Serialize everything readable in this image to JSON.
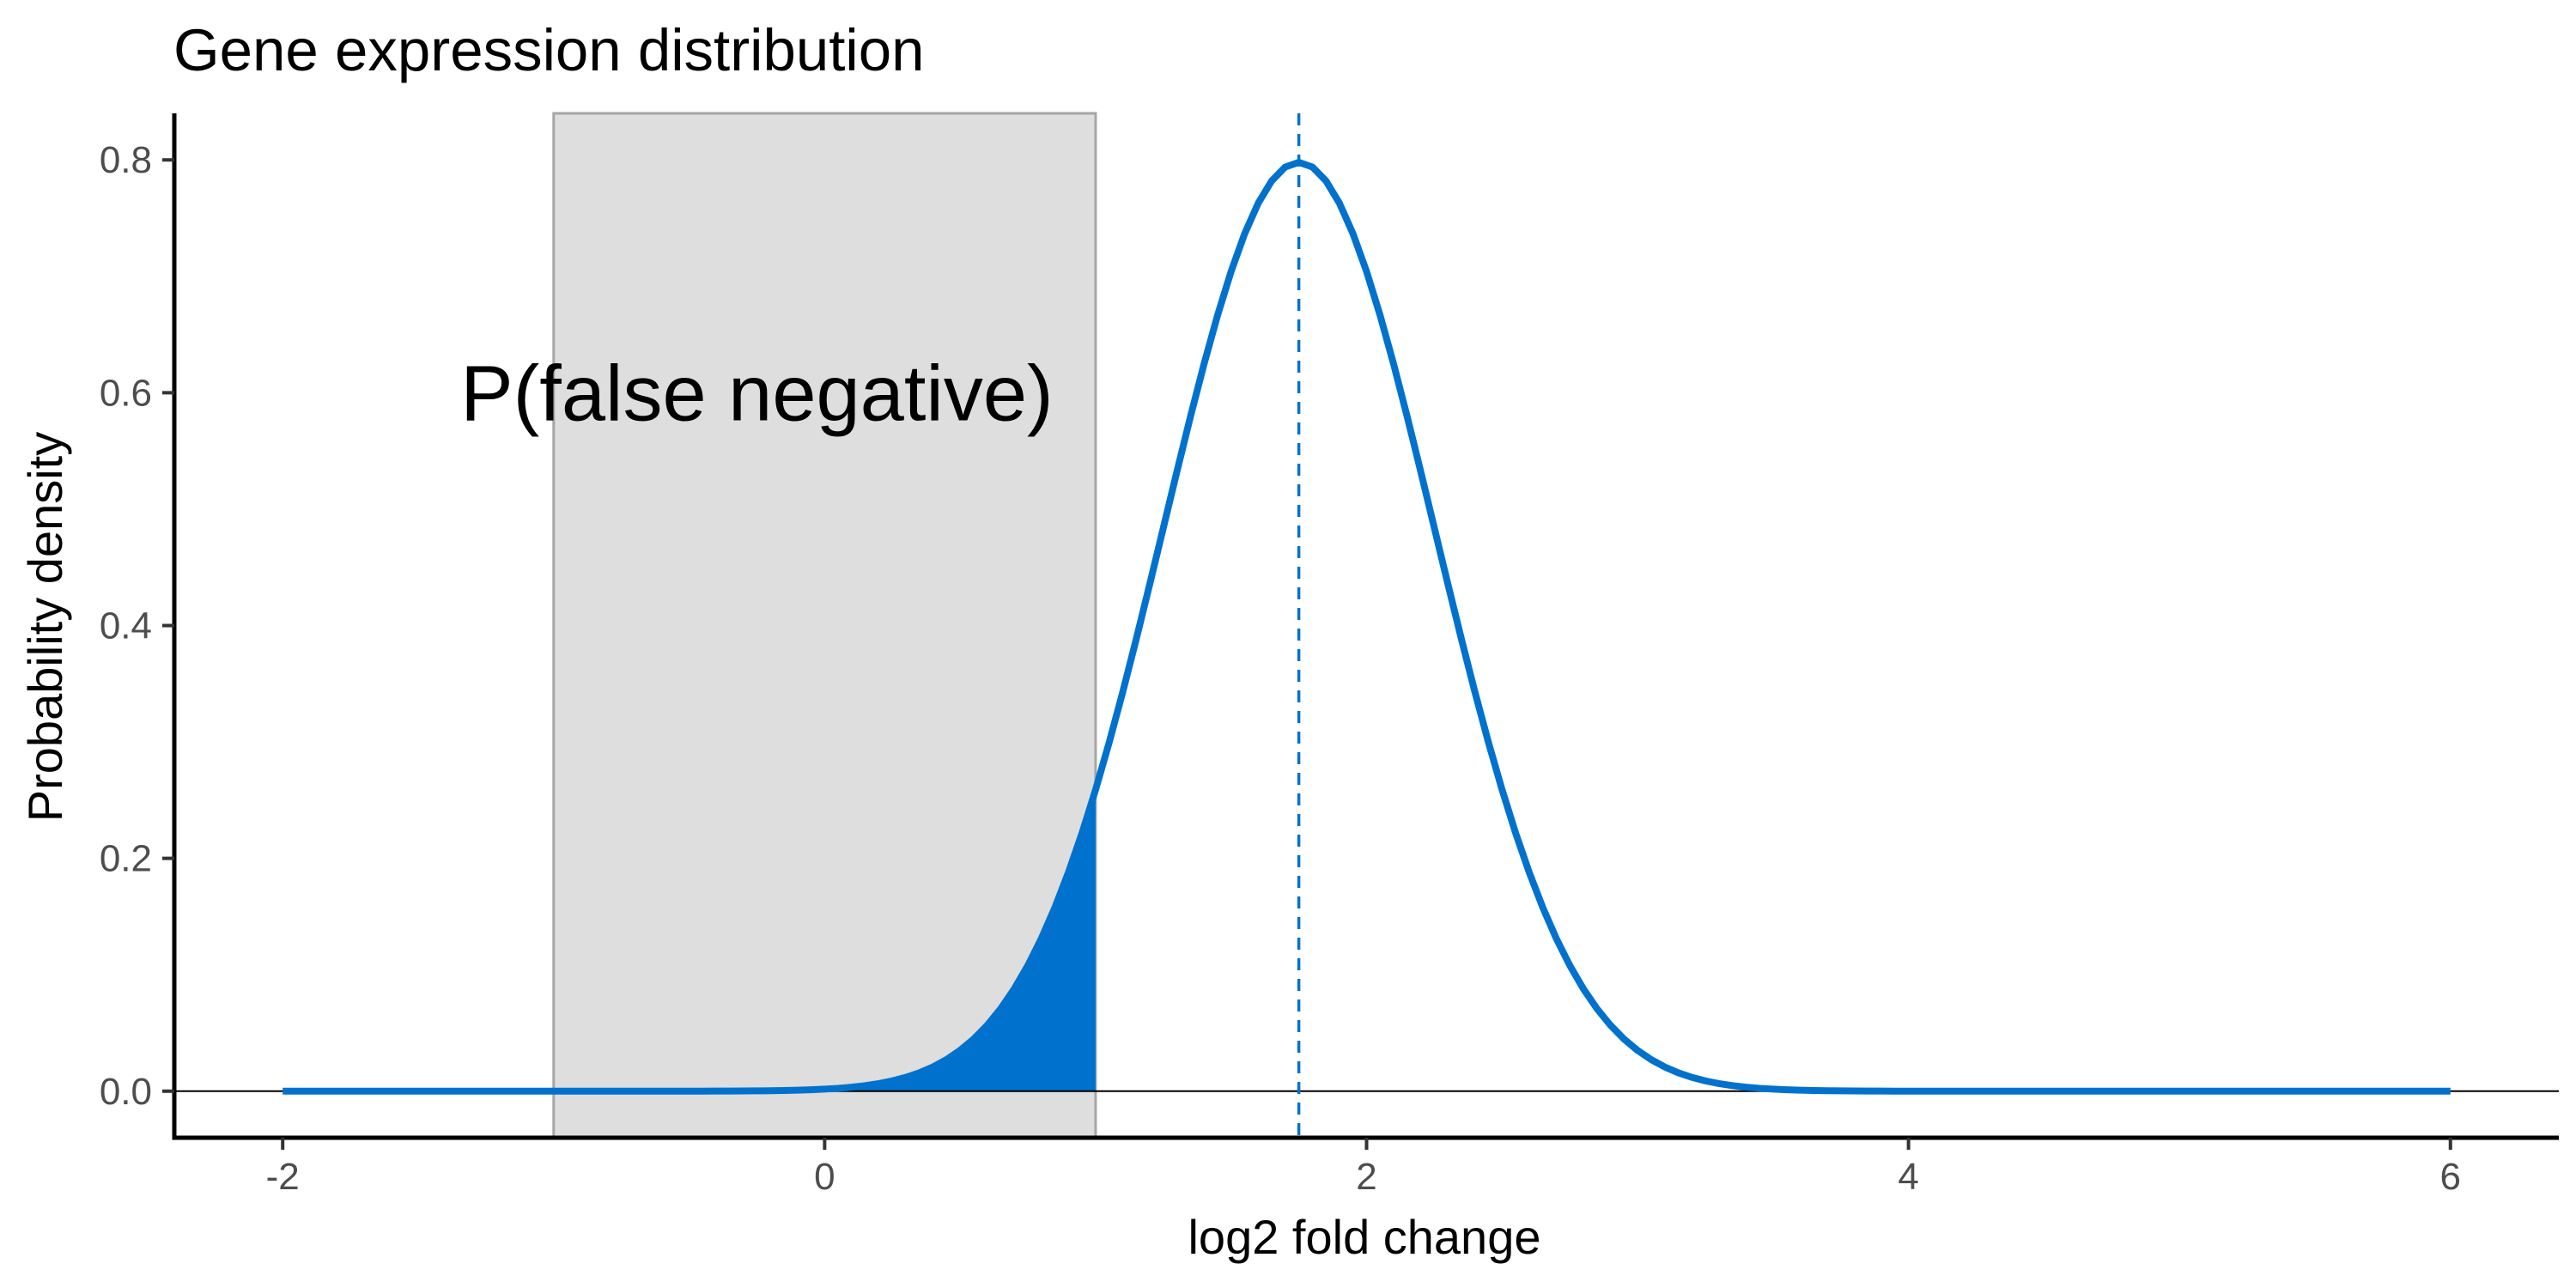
{
  "chart_data": {
    "type": "line",
    "title": "Gene expression distribution",
    "xlabel": "log2 fold change",
    "ylabel": "Probability density",
    "xlim": [
      -2.4,
      6.4
    ],
    "ylim": [
      -0.04,
      0.84
    ],
    "x_ticks": [
      -2,
      0,
      2,
      4,
      6
    ],
    "y_ticks": [
      0.0,
      0.2,
      0.4,
      0.6,
      0.8
    ],
    "x_tick_labels": [
      "-2",
      "0",
      "2",
      "4",
      "6"
    ],
    "y_tick_labels": [
      "0.0",
      "0.2",
      "0.4",
      "0.6",
      "0.8"
    ],
    "grid": false,
    "series": [
      {
        "distribution": "normal",
        "mean": 1.75,
        "sd": 0.5,
        "x_range": [
          -2,
          6
        ],
        "color": "#0072CE"
      }
    ],
    "shaded_region": {
      "x_range": [
        -1,
        1
      ],
      "color": "#DEDEDE",
      "border": "#A6A6A6"
    },
    "filled_tail": {
      "x_range": [
        -2,
        1
      ],
      "color": "#0072CE"
    },
    "vline": {
      "x": 1.75,
      "style": "dashed",
      "color": "#0072CE"
    },
    "hline": {
      "y": 0
    },
    "annotation": {
      "text": "P(false negative)",
      "x": -0.25,
      "y": 0.6
    }
  }
}
